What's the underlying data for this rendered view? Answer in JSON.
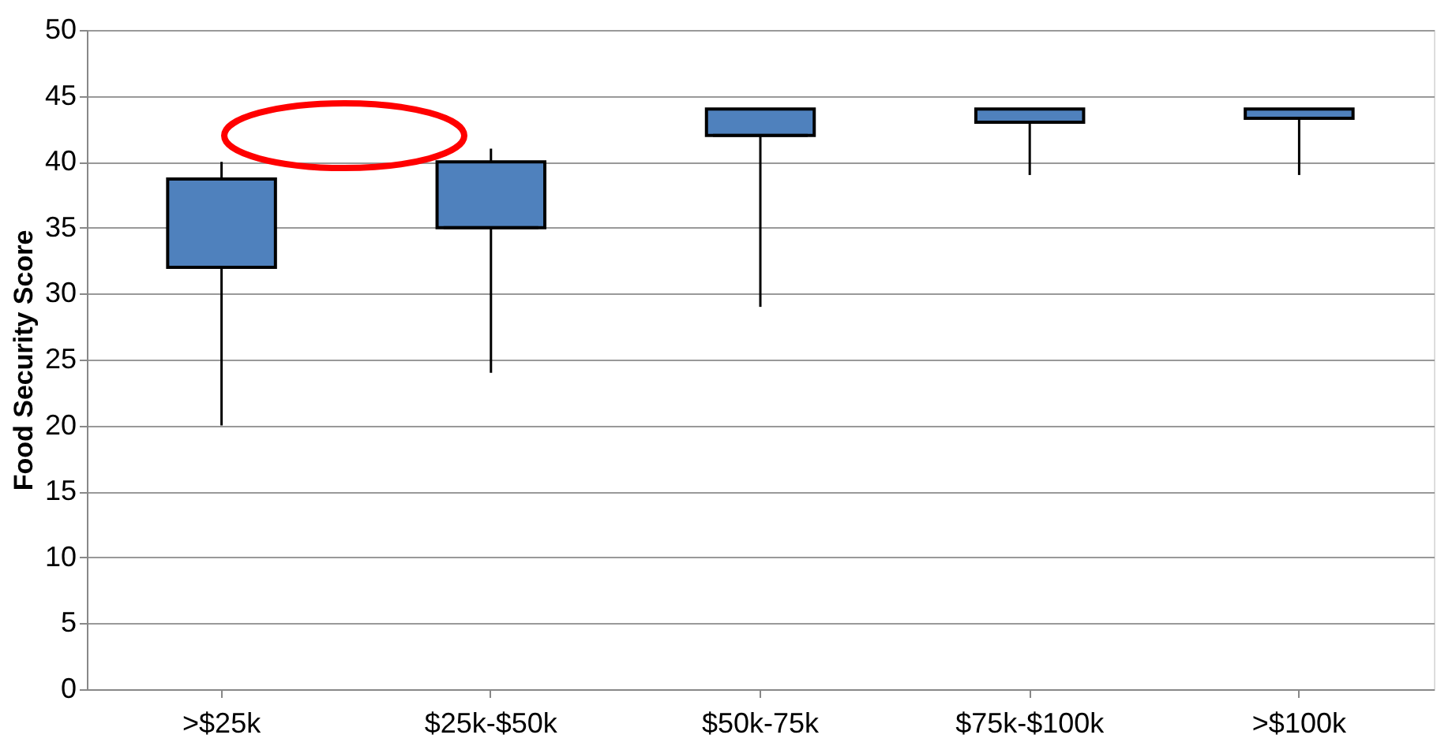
{
  "chart_data": {
    "type": "box",
    "ylabel": "Food Security Score",
    "categories": [
      ">$25k",
      "$25k-$50k",
      "$50k-75k",
      "$75k-$100k",
      ">$100k"
    ],
    "color": "#4f81bd",
    "boxes": [
      {
        "low": 20,
        "q1": 32,
        "median": 32,
        "q3": 38.7,
        "high": 40
      },
      {
        "low": 24,
        "q1": 35,
        "median": 35,
        "q3": 40,
        "high": 41
      },
      {
        "low": 29,
        "q1": 42,
        "median": 42,
        "q3": 44,
        "high": 44
      },
      {
        "low": 39,
        "q1": 43,
        "median": 43,
        "q3": 44,
        "high": 44
      },
      {
        "low": 39,
        "q1": 43.3,
        "median": 43.3,
        "q3": 44,
        "high": 44
      }
    ],
    "ylim": [
      0,
      50
    ],
    "yticks": [
      0,
      5,
      10,
      15,
      20,
      25,
      30,
      35,
      40,
      45,
      50
    ],
    "grid": "y"
  }
}
